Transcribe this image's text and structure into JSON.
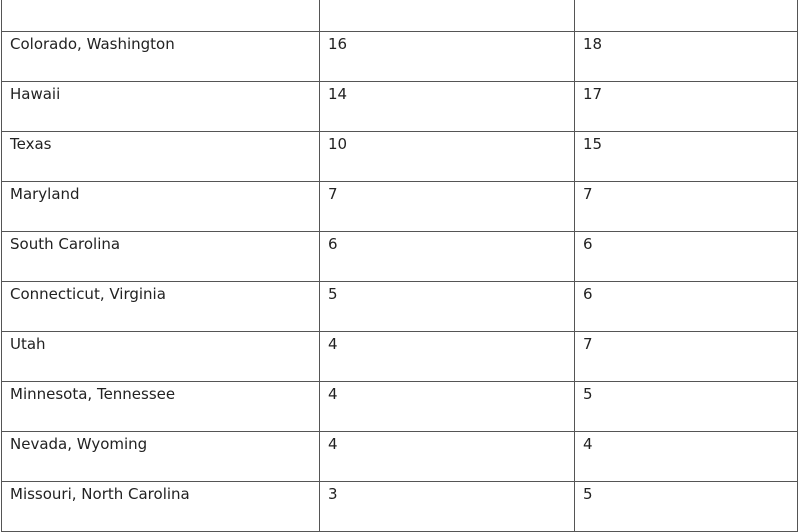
{
  "table": {
    "rows": [
      [
        "Colorado, Washington",
        "16",
        "18"
      ],
      [
        "Hawaii",
        "14",
        "17"
      ],
      [
        "Texas",
        "10",
        "15"
      ],
      [
        "Maryland",
        "7",
        "7"
      ],
      [
        "South Carolina",
        "6",
        "6"
      ],
      [
        "Connecticut, Virginia",
        "5",
        "6"
      ],
      [
        "Utah",
        "4",
        "7"
      ],
      [
        "Minnesota, Tennessee",
        "4",
        "5"
      ],
      [
        "Nevada, Wyoming",
        "4",
        "4"
      ],
      [
        "Missouri, North Carolina",
        "3",
        "5"
      ]
    ]
  }
}
